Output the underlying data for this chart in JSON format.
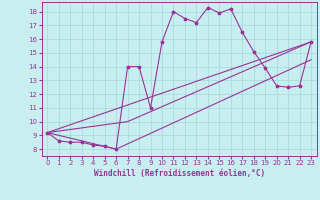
{
  "xlabel": "Windchill (Refroidissement éolien,°C)",
  "bg_color": "#c8eef0",
  "line_color": "#993399",
  "grid_color": "#a0d8dc",
  "xlim": [
    -0.5,
    23.5
  ],
  "ylim": [
    7.5,
    18.7
  ],
  "xticks": [
    0,
    1,
    2,
    3,
    4,
    5,
    6,
    7,
    8,
    9,
    10,
    11,
    12,
    13,
    14,
    15,
    16,
    17,
    18,
    19,
    20,
    21,
    22,
    23
  ],
  "yticks": [
    8,
    9,
    10,
    11,
    12,
    13,
    14,
    15,
    16,
    17,
    18
  ],
  "series": [
    [
      0,
      9.2
    ],
    [
      1,
      8.6
    ],
    [
      2,
      8.5
    ],
    [
      3,
      8.5
    ],
    [
      4,
      8.3
    ],
    [
      5,
      8.2
    ],
    [
      6,
      8.0
    ],
    [
      7,
      14.0
    ],
    [
      8,
      14.0
    ],
    [
      9,
      11.0
    ],
    [
      10,
      15.8
    ],
    [
      11,
      18.0
    ],
    [
      12,
      17.5
    ],
    [
      13,
      17.2
    ],
    [
      14,
      18.3
    ],
    [
      15,
      17.9
    ],
    [
      16,
      18.2
    ],
    [
      17,
      16.5
    ],
    [
      18,
      15.1
    ],
    [
      19,
      13.9
    ],
    [
      20,
      12.6
    ],
    [
      21,
      12.5
    ],
    [
      22,
      12.6
    ],
    [
      23,
      15.8
    ]
  ],
  "line_straight1": [
    [
      0,
      9.2
    ],
    [
      23,
      15.8
    ]
  ],
  "line_straight2": [
    [
      0,
      9.2
    ],
    [
      6,
      8.0
    ],
    [
      23,
      14.5
    ]
  ],
  "line_straight3": [
    [
      0,
      9.2
    ],
    [
      7,
      10.0
    ],
    [
      23,
      15.8
    ]
  ]
}
